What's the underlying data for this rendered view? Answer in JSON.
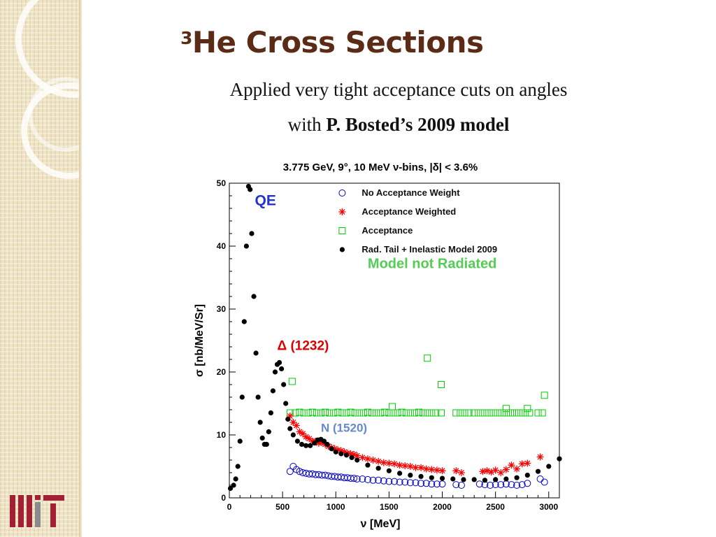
{
  "slide": {
    "title_super": "3",
    "title_main": "He Cross Sections",
    "subtitle_line1": "Applied very tight acceptance cuts on angles",
    "subtitle_line2_prefix": "with ",
    "subtitle_line2_bold": "P. Bosted’s 2009 model",
    "logo_text": "MIT"
  },
  "colors": {
    "title": "#5c2b16",
    "series_no_acceptance": "#0000cc",
    "series_acceptance_weighted": "#ff0000",
    "series_acceptance": "#00cc00",
    "series_model": "#000000",
    "annotation_qe": "#2233cc",
    "annotation_delta": "#dd0000",
    "annotation_n1520": "#6688cc",
    "annotation_model_not_radiated": "#55cc55"
  },
  "chart_data": {
    "type": "scatter",
    "title": "3.775 GeV, 9°, 10 MeV ν-bins, |δ| < 3.6%",
    "xlabel": "ν [MeV]",
    "ylabel": "σ [nb/MeV/Sr]",
    "xlim": [
      0,
      3100
    ],
    "ylim": [
      0,
      50
    ],
    "xticks": [
      0,
      500,
      1000,
      1500,
      2000,
      2500,
      3000
    ],
    "yticks": [
      0,
      10,
      20,
      30,
      40,
      50
    ],
    "grid": false,
    "legend_position": "top-right",
    "legend": [
      {
        "label": "No Acceptance Weight",
        "marker": "open-circle"
      },
      {
        "label": "Acceptance Weighted",
        "marker": "asterisk"
      },
      {
        "label": "Acceptance",
        "marker": "open-square"
      },
      {
        "label": "Rad. Tail + Inelastic Model 2009",
        "marker": "dot"
      }
    ],
    "annotations": [
      {
        "text": "QE",
        "x": 240,
        "y": 46.5
      },
      {
        "text": "Δ (1232)",
        "x": 450,
        "y": 23.5
      },
      {
        "text": "N (1520)",
        "x": 860,
        "y": 10.5
      },
      {
        "text": "Model not Radiated",
        "x": 1300,
        "y": 36.5
      }
    ],
    "series": [
      {
        "name": "Rad. Tail + Inelastic Model 2009",
        "marker": "dot",
        "x": [
          10,
          40,
          60,
          80,
          100,
          120,
          140,
          160,
          180,
          195,
          210,
          230,
          250,
          270,
          290,
          310,
          330,
          350,
          370,
          390,
          410,
          430,
          450,
          470,
          490,
          510,
          530,
          550,
          570,
          600,
          640,
          680,
          720,
          760,
          800,
          830,
          860,
          890,
          920,
          960,
          1000,
          1050,
          1100,
          1150,
          1200,
          1300,
          1400,
          1500,
          1600,
          1700,
          1800,
          1900,
          2000,
          2100,
          2200,
          2300,
          2400,
          2500,
          2600,
          2700,
          2800,
          2900,
          3000,
          3100
        ],
        "y": [
          1.5,
          2.0,
          3.0,
          5.0,
          9.0,
          16.0,
          28.0,
          40.0,
          49.5,
          49.0,
          42.0,
          32.0,
          23.0,
          16.0,
          12.0,
          9.5,
          8.5,
          8.5,
          10.5,
          13.5,
          17.0,
          20.0,
          21.2,
          21.5,
          20.5,
          18.0,
          15.0,
          12.5,
          11.0,
          10.0,
          9.0,
          8.5,
          8.3,
          8.3,
          8.7,
          9.2,
          9.3,
          9.0,
          8.5,
          7.8,
          7.3,
          7.0,
          6.8,
          6.4,
          6.0,
          5.2,
          4.7,
          4.3,
          3.9,
          3.6,
          3.4,
          3.2,
          3.1,
          3.0,
          2.9,
          2.9,
          2.8,
          2.9,
          3.0,
          3.2,
          3.6,
          4.2,
          5.0,
          6.2
        ]
      },
      {
        "name": "Acceptance Weighted",
        "marker": "asterisk",
        "x": [
          570,
          600,
          630,
          660,
          690,
          720,
          750,
          780,
          810,
          840,
          870,
          900,
          930,
          960,
          990,
          1020,
          1050,
          1080,
          1110,
          1140,
          1170,
          1200,
          1250,
          1300,
          1350,
          1400,
          1450,
          1500,
          1550,
          1600,
          1650,
          1700,
          1750,
          1800,
          1850,
          1900,
          1950,
          2000,
          2130,
          2180,
          2380,
          2420,
          2460,
          2500,
          2550,
          2600,
          2650,
          2700,
          2750,
          2800,
          2920
        ],
        "y": [
          13.0,
          12.0,
          11.5,
          10.5,
          10.2,
          9.7,
          9.4,
          9.0,
          9.0,
          8.7,
          8.8,
          8.5,
          8.2,
          8.0,
          7.8,
          7.6,
          7.5,
          7.3,
          7.1,
          7.0,
          6.9,
          6.7,
          6.4,
          6.2,
          6.0,
          5.8,
          5.6,
          5.5,
          5.4,
          5.2,
          5.1,
          5.0,
          4.8,
          4.8,
          4.6,
          4.5,
          4.4,
          4.3,
          4.3,
          4.0,
          4.2,
          4.3,
          4.1,
          4.4,
          4.0,
          4.5,
          5.2,
          4.6,
          5.4,
          5.5,
          6.5
        ]
      },
      {
        "name": "No Acceptance Weight",
        "marker": "open-circle",
        "x": [
          570,
          600,
          630,
          660,
          690,
          720,
          750,
          780,
          810,
          840,
          870,
          900,
          930,
          960,
          990,
          1020,
          1050,
          1080,
          1110,
          1140,
          1170,
          1200,
          1250,
          1300,
          1350,
          1400,
          1450,
          1500,
          1550,
          1600,
          1650,
          1700,
          1750,
          1800,
          1850,
          1900,
          1950,
          2000,
          2130,
          2180,
          2350,
          2400,
          2450,
          2500,
          2550,
          2600,
          2650,
          2700,
          2750,
          2800,
          2920,
          2960
        ],
        "y": [
          4.2,
          5.0,
          4.5,
          4.2,
          4.0,
          3.9,
          3.8,
          3.8,
          3.7,
          3.7,
          3.6,
          3.6,
          3.5,
          3.4,
          3.4,
          3.3,
          3.3,
          3.2,
          3.2,
          3.1,
          3.1,
          3.0,
          3.0,
          2.9,
          2.8,
          2.8,
          2.7,
          2.6,
          2.6,
          2.5,
          2.5,
          2.4,
          2.4,
          2.3,
          2.3,
          2.2,
          2.2,
          2.2,
          2.1,
          2.0,
          2.2,
          2.1,
          2.0,
          2.1,
          2.1,
          2.2,
          2.1,
          2.0,
          2.1,
          2.3,
          3.0,
          2.5
        ]
      },
      {
        "name": "Acceptance",
        "marker": "open-square",
        "x": [
          570,
          620,
          660,
          700,
          740,
          780,
          820,
          860,
          900,
          940,
          980,
          1020,
          1060,
          1100,
          1140,
          1180,
          1220,
          1260,
          1300,
          1340,
          1380,
          1420,
          1460,
          1500,
          1540,
          1580,
          1620,
          1660,
          1700,
          1740,
          1780,
          1820,
          1860,
          1900,
          1940,
          1990,
          2130,
          2170,
          2210,
          2250,
          2300,
          2340,
          2380,
          2420,
          2460,
          2500,
          2540,
          2580,
          2620,
          2660,
          2700,
          2740,
          2780,
          2820,
          2900,
          2940,
          590,
          1530,
          1860,
          1990,
          2600,
          2800,
          2960
        ],
        "y": [
          13.5,
          13.5,
          13.6,
          13.5,
          13.5,
          13.6,
          13.5,
          13.5,
          13.6,
          13.5,
          13.5,
          13.6,
          13.5,
          13.5,
          13.6,
          13.5,
          13.5,
          13.5,
          13.6,
          13.5,
          13.5,
          13.5,
          13.6,
          13.5,
          13.5,
          13.5,
          13.6,
          13.5,
          13.5,
          13.5,
          13.6,
          13.5,
          13.5,
          13.5,
          13.5,
          13.5,
          13.5,
          13.5,
          13.5,
          13.5,
          13.5,
          13.5,
          13.5,
          13.5,
          13.5,
          13.5,
          13.5,
          13.5,
          13.5,
          13.5,
          13.5,
          13.5,
          13.5,
          13.5,
          13.5,
          13.5,
          18.5,
          14.5,
          22.2,
          18.0,
          14.2,
          14.2,
          16.3
        ]
      }
    ]
  }
}
